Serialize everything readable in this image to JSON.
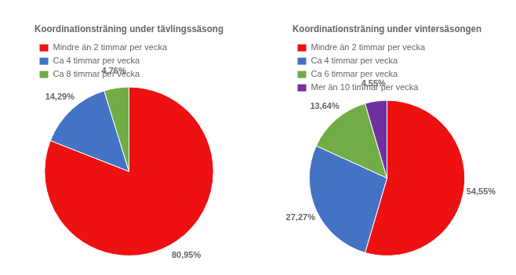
{
  "chart_data": [
    {
      "type": "pie",
      "title": "Koordinationsträning under tävlingssäsong",
      "categories": [
        "Mindre än 2 timmar per vecka",
        "Ca 4 timmar per vecka",
        "Ca 8 timmar per vecka"
      ],
      "values": [
        80.95,
        14.29,
        4.76
      ],
      "value_labels": [
        "80,95%",
        "14,29%",
        "4,76%"
      ],
      "colors": [
        "#ee1111",
        "#4472c4",
        "#70ad47"
      ],
      "data_labels": true,
      "legend": "top"
    },
    {
      "type": "pie",
      "title": "Koordinationsträning under vintersäsongen",
      "categories": [
        "Mindre än 2 timmar per vecka",
        "Ca 4 timmar per vecka",
        "Ca 6 timmar per vecka",
        "Mer än 10 timmar per vecka"
      ],
      "values": [
        54.55,
        27.27,
        13.64,
        4.55
      ],
      "value_labels": [
        "54,55%",
        "27,27%",
        "13,64%",
        "4,55%"
      ],
      "colors": [
        "#ee1111",
        "#4472c4",
        "#70ad47",
        "#7030a0"
      ],
      "data_labels": true,
      "legend": "top"
    }
  ]
}
